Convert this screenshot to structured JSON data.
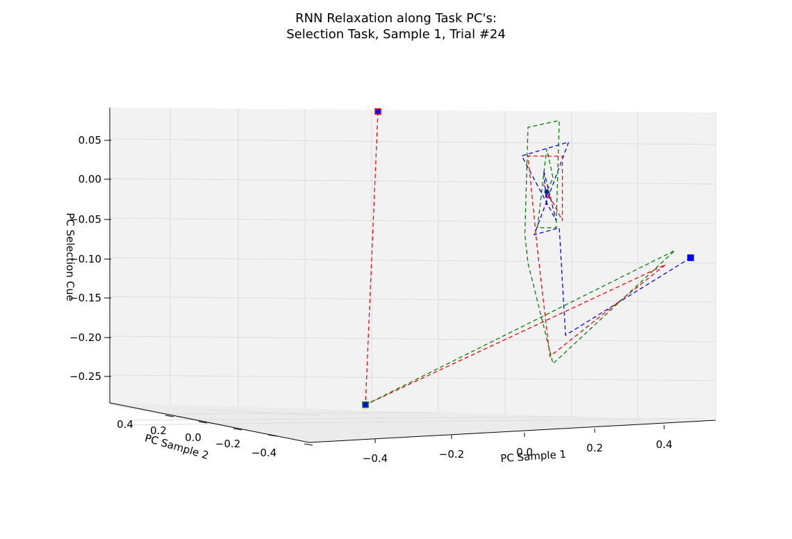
{
  "chart_data": {
    "type": "line",
    "projection": "3d",
    "title": [
      "RNN Relaxation along Task PC's:",
      "Selection Task, Sample 1, Trial #24"
    ],
    "xlabel": "PC Sample 1",
    "ylabel": "PC Sample 2",
    "zlabel": "PC Selection Cue",
    "xticks": [
      "−0.4",
      "−0.2",
      "0.0",
      "0.2",
      "0.4"
    ],
    "yticks": [
      "0.4",
      "0.2",
      "0.0",
      "−0.2",
      "−0.4"
    ],
    "zticks": [
      "0.05",
      "0.00",
      "−0.05",
      "−0.10",
      "−0.15",
      "−0.20",
      "−0.25"
    ],
    "grid": true,
    "line_style": "dashed",
    "series": [
      {
        "color": "#0000ff",
        "start_marker": "blue-square",
        "points": [
          [
            0.52,
            0.0,
            -0.09
          ],
          [
            0.12,
            0.0,
            -0.2
          ],
          [
            0.1,
            0.0,
            -0.05
          ],
          [
            0.02,
            0.0,
            -0.06
          ],
          [
            0.13,
            0.0,
            0.07
          ],
          [
            -0.02,
            0.0,
            0.05
          ],
          [
            0.09,
            0.0,
            -0.04
          ],
          [
            0.05,
            0.0,
            0.03
          ],
          [
            0.06,
            0.0,
            -0.02
          ],
          [
            0.06,
            0.0,
            0.0
          ]
        ]
      },
      {
        "color": "#ff0000",
        "start_marker": "red-square",
        "points": [
          [
            -0.48,
            0.0,
            0.11
          ],
          [
            -0.52,
            0.0,
            -0.3
          ],
          [
            0.44,
            0.0,
            -0.1
          ],
          [
            0.07,
            0.0,
            -0.23
          ],
          [
            0.03,
            0.0,
            -0.08
          ],
          [
            0.0,
            0.0,
            0.05
          ],
          [
            0.11,
            0.0,
            0.05
          ],
          [
            0.11,
            0.0,
            -0.04
          ],
          [
            0.05,
            0.0,
            0.01
          ],
          [
            0.07,
            0.0,
            -0.01
          ],
          [
            0.06,
            0.0,
            0.0
          ]
        ]
      },
      {
        "color": "#008000",
        "start_marker": "green-square",
        "points": [
          [
            -0.52,
            0.0,
            -0.3
          ],
          [
            0.47,
            0.0,
            -0.08
          ],
          [
            0.08,
            0.0,
            -0.24
          ],
          [
            0.0,
            0.0,
            -0.1
          ],
          [
            -0.01,
            0.0,
            -0.06
          ],
          [
            0.0,
            0.0,
            0.09
          ],
          [
            0.1,
            0.0,
            0.1
          ],
          [
            0.09,
            0.0,
            -0.05
          ],
          [
            0.03,
            0.0,
            -0.05
          ],
          [
            0.06,
            0.0,
            0.06
          ],
          [
            0.08,
            0.0,
            0.02
          ],
          [
            0.06,
            0.0,
            0.0
          ]
        ]
      }
    ]
  }
}
